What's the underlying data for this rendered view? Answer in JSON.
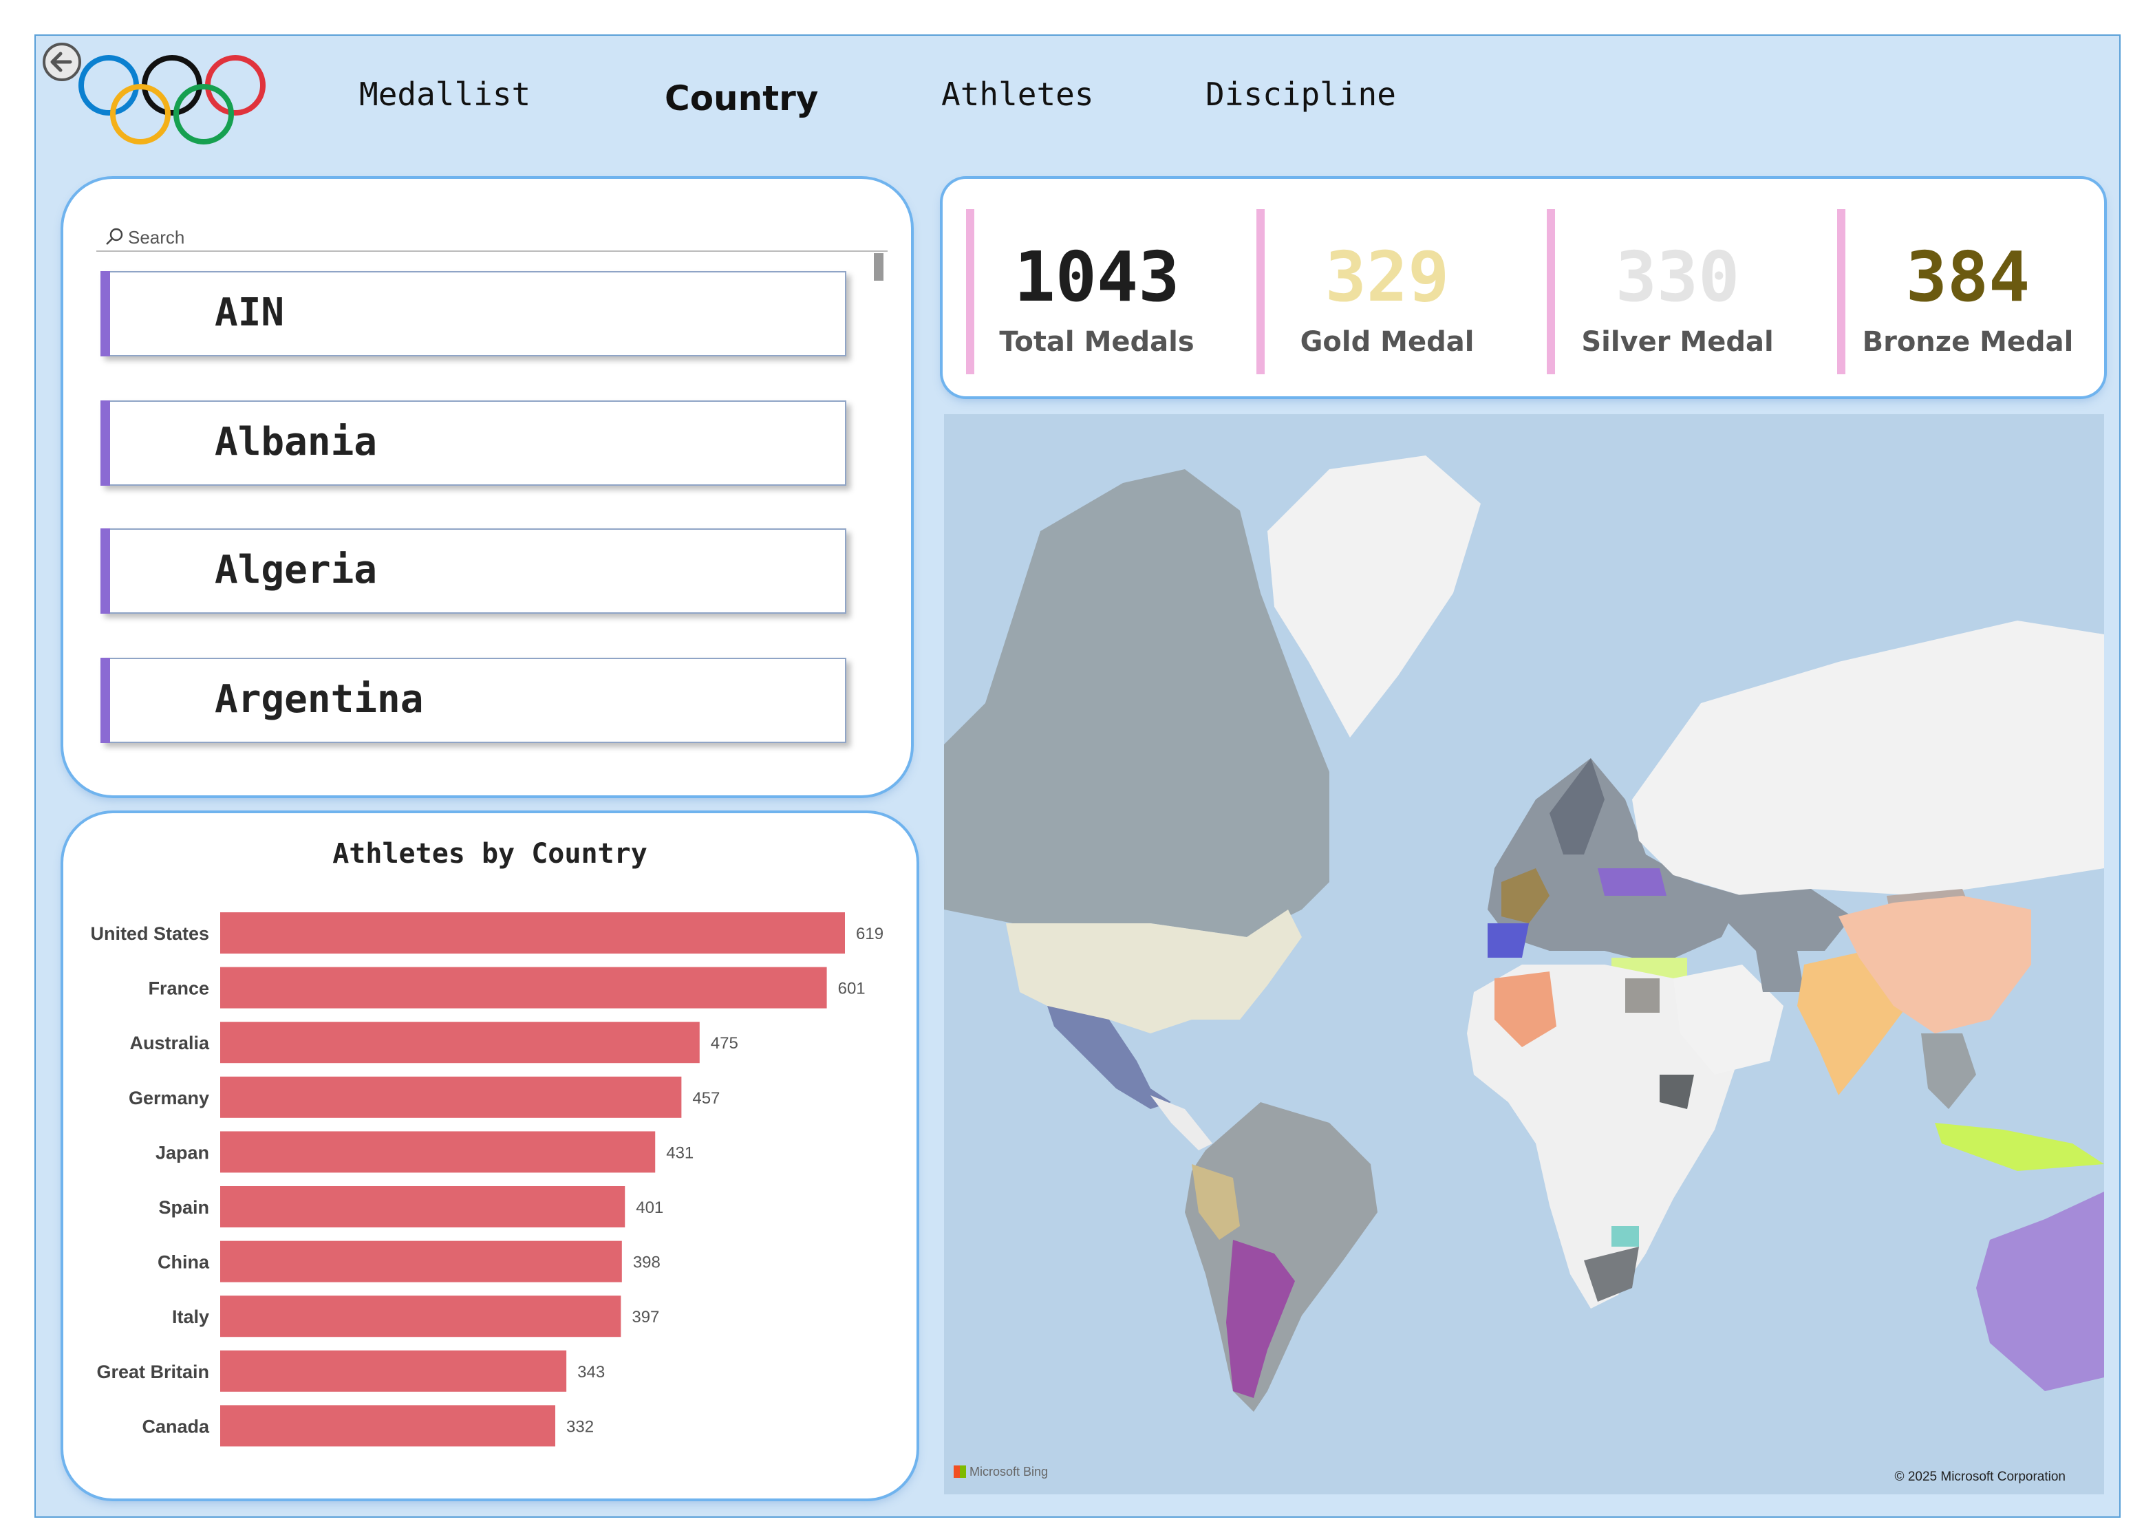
{
  "nav": {
    "back_icon": "back-arrow-icon",
    "logo_icon": "olympic-rings-icon",
    "tabs": [
      {
        "label": "Medallist",
        "active": false
      },
      {
        "label": "Country",
        "active": true
      },
      {
        "label": "Athletes",
        "active": false
      },
      {
        "label": "Discipline",
        "active": false
      }
    ]
  },
  "slicer": {
    "search_placeholder": "Search",
    "items": [
      "AIN",
      "Albania",
      "Algeria",
      "Argentina"
    ],
    "accent": "#8b6ad3"
  },
  "kpis": [
    {
      "value": "1043",
      "label": "Total Medals",
      "color": "#1e1e1e"
    },
    {
      "value": "329",
      "label": "Gold Medal",
      "color": "#efe0a0"
    },
    {
      "value": "330",
      "label": "Silver Medal",
      "color": "#e4e4e4"
    },
    {
      "value": "384",
      "label": "Bronze Medal",
      "color": "#6b5a10"
    }
  ],
  "chart_data": {
    "type": "bar",
    "orientation": "horizontal",
    "title": "Athletes by Country",
    "categories": [
      "United States",
      "France",
      "Australia",
      "Germany",
      "Japan",
      "Spain",
      "China",
      "Italy",
      "Great Britain",
      "Canada"
    ],
    "values": [
      619,
      601,
      475,
      457,
      431,
      401,
      398,
      397,
      343,
      332
    ],
    "bar_color": "#e0666f",
    "xlim": [
      0,
      619
    ],
    "grid": false,
    "data_labels": true
  },
  "map": {
    "attribution": "Microsoft Bing",
    "copyright": "© 2025 Microsoft Corporation",
    "ocean_color": "#b9d2e8",
    "land_color": "#f2f2f2"
  }
}
